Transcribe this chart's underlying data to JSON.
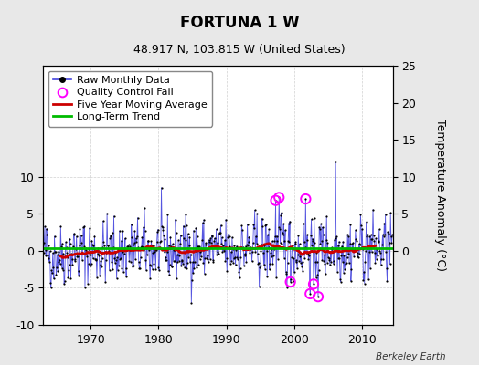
{
  "title": "FORTUNA 1 W",
  "subtitle": "48.917 N, 103.815 W (United States)",
  "ylabel": "Temperature Anomaly (°C)",
  "credit": "Berkeley Earth",
  "start_year": 1963.0,
  "end_year": 2014.5,
  "ylim": [
    -10,
    25
  ],
  "yticks_left": [
    -10,
    -5,
    0,
    5,
    10
  ],
  "yticks_right": [
    0,
    5,
    10,
    15,
    20,
    25
  ],
  "xticks": [
    1970,
    1980,
    1990,
    2000,
    2010
  ],
  "long_term_trend_value": 0.3,
  "bg_color": "#e8e8e8",
  "plot_bg_color": "#ffffff",
  "raw_line_color": "#4444dd",
  "raw_dot_color": "#000000",
  "moving_avg_color": "#cc0000",
  "trend_color": "#00bb00",
  "qc_fail_color": "#ff00ff",
  "grid_color": "#cccccc",
  "title_fontsize": 12,
  "subtitle_fontsize": 9,
  "tick_fontsize": 9,
  "legend_fontsize": 8,
  "ylabel_fontsize": 9,
  "seed": 42,
  "qc_points": [
    [
      1997.25,
      6.8
    ],
    [
      1997.75,
      7.2
    ],
    [
      1999.42,
      -4.2
    ],
    [
      2001.67,
      7.0
    ],
    [
      2002.33,
      -5.8
    ],
    [
      2002.83,
      -4.5
    ],
    [
      2003.5,
      -6.2
    ]
  ],
  "spike_year": 2006.08,
  "spike_value": 12.0
}
